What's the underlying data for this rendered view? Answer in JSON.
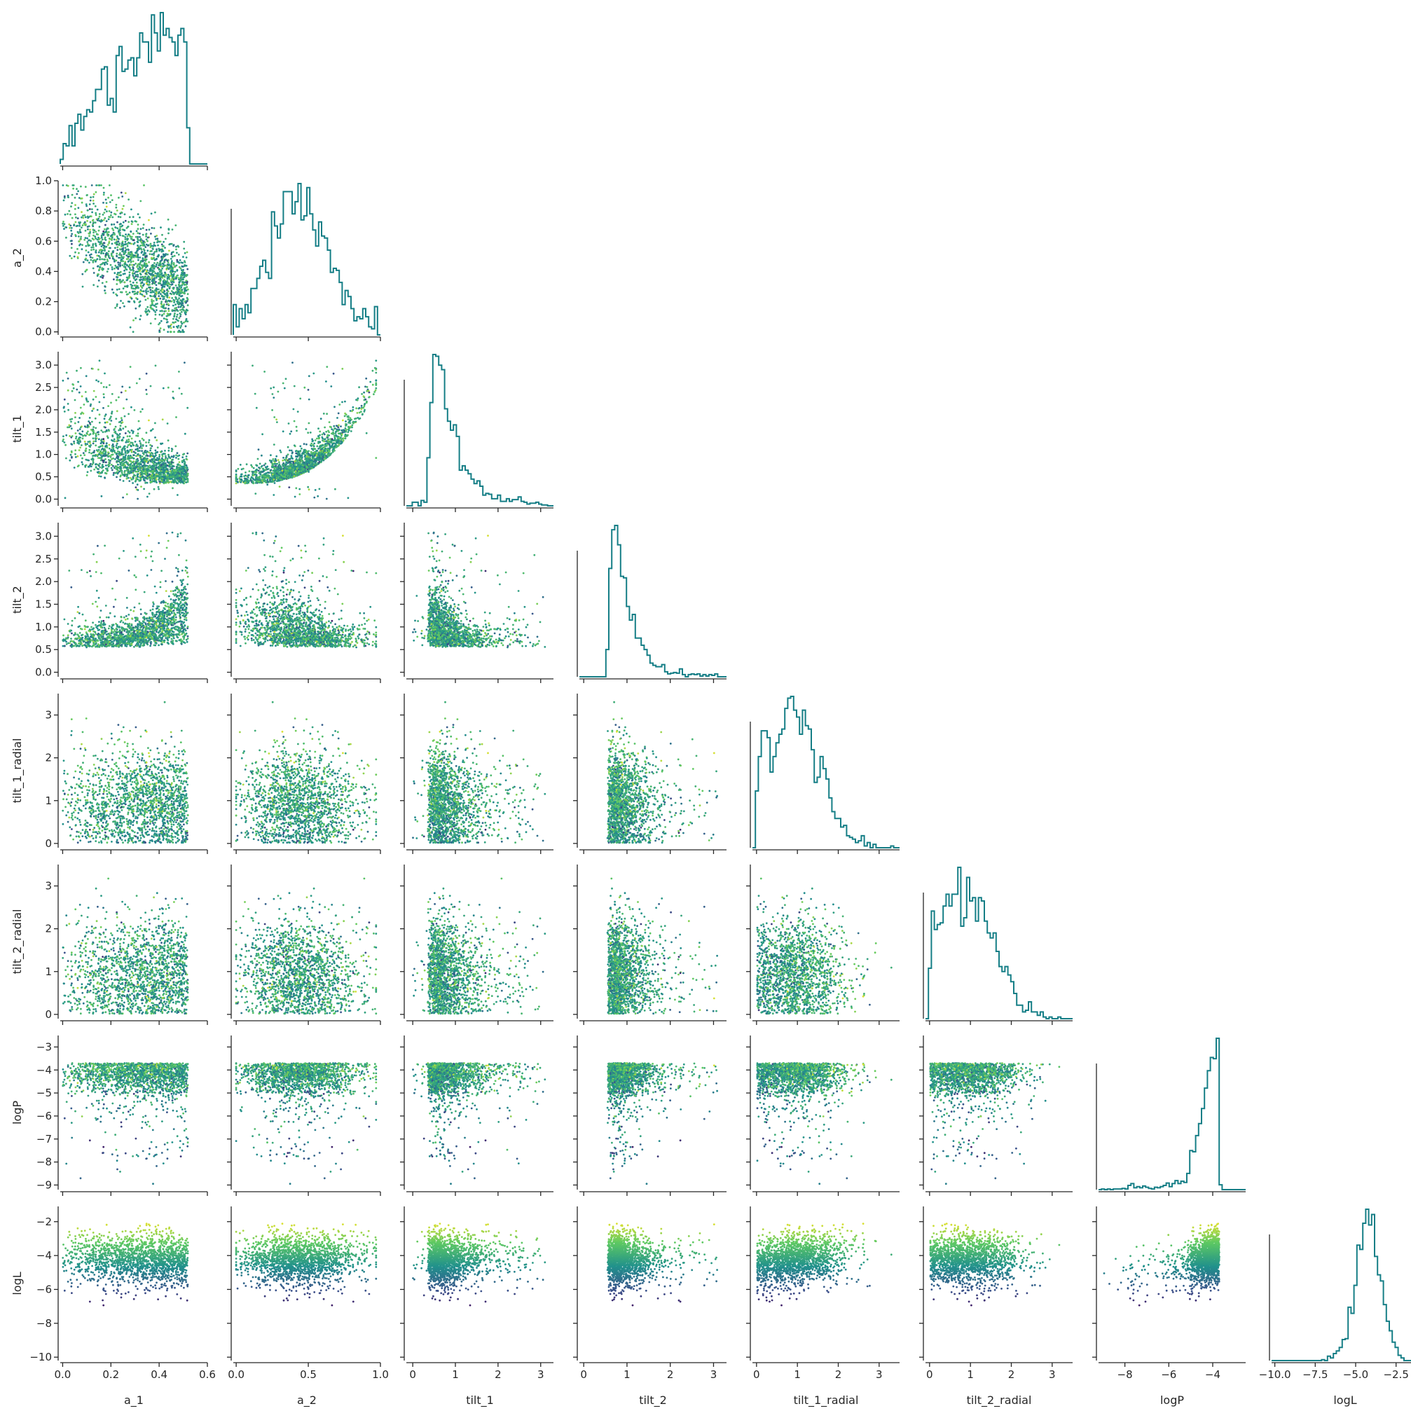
{
  "chart_data": {
    "type": "scatter",
    "layout": "corner pair plot (lower triangle scatter, diagonal histograms)",
    "variables": [
      {
        "name": "a_1",
        "label": "a_1",
        "range": [
          -0.01,
          0.6
        ],
        "ticks": [
          0.0,
          0.2,
          0.4,
          0.6
        ],
        "tick_labels": [
          "0.0",
          "0.2",
          "0.4",
          "0.6"
        ]
      },
      {
        "name": "a_2",
        "label": "a_2",
        "range": [
          -0.02,
          1.0
        ],
        "ticks": [
          0.0,
          0.2,
          0.4,
          0.6,
          0.8,
          1.0
        ],
        "tick_labels": [
          "0.0",
          "0.2",
          "0.4",
          "0.6",
          "0.8",
          "1.0"
        ],
        "x_ticks": [
          0.0,
          0.5,
          1.0
        ],
        "x_tick_labels": [
          "0.0",
          "0.5",
          "1.0"
        ]
      },
      {
        "name": "tilt_1",
        "label": "tilt_1",
        "range": [
          -0.15,
          3.3
        ],
        "ticks": [
          0.0,
          0.5,
          1.0,
          1.5,
          2.0,
          2.5,
          3.0
        ],
        "tick_labels": [
          "0.0",
          "0.5",
          "1.0",
          "1.5",
          "2.0",
          "2.5",
          "3.0"
        ],
        "x_ticks": [
          0,
          1,
          2,
          3
        ],
        "x_tick_labels": [
          "0",
          "1",
          "2",
          "3"
        ]
      },
      {
        "name": "tilt_2",
        "label": "tilt_2",
        "range": [
          -0.1,
          3.3
        ],
        "ticks": [
          0.0,
          0.5,
          1.0,
          1.5,
          2.0,
          2.5,
          3.0
        ],
        "tick_labels": [
          "0.0",
          "0.5",
          "1.0",
          "1.5",
          "2.0",
          "2.5",
          "3.0"
        ],
        "x_ticks": [
          0,
          1,
          2,
          3
        ],
        "x_tick_labels": [
          "0",
          "1",
          "2",
          "3"
        ]
      },
      {
        "name": "tilt_1_radial",
        "label": "tilt_1_radial",
        "range": [
          -0.1,
          3.5
        ],
        "ticks": [
          0,
          1,
          2,
          3
        ],
        "tick_labels": [
          "0",
          "1",
          "2",
          "3"
        ]
      },
      {
        "name": "tilt_2_radial",
        "label": "tilt_2_radial",
        "range": [
          -0.1,
          3.5
        ],
        "ticks": [
          0,
          1,
          2,
          3
        ],
        "tick_labels": [
          "0",
          "1",
          "2",
          "3"
        ]
      },
      {
        "name": "logP",
        "label": "logP",
        "range": [
          -9.2,
          -2.5
        ],
        "ticks": [
          -9,
          -8,
          -7,
          -6,
          -5,
          -4,
          -3
        ],
        "tick_labels": [
          "−9",
          "−8",
          "−7",
          "−6",
          "−5",
          "−4",
          "−3"
        ],
        "x_ticks": [
          -8,
          -6,
          -4
        ],
        "x_tick_labels": [
          "−8",
          "−6",
          "−4"
        ]
      },
      {
        "name": "logL",
        "label": "logL",
        "range": [
          -10.2,
          -1.1
        ],
        "ticks": [
          -10,
          -8,
          -6,
          -4,
          -2
        ],
        "tick_labels": [
          "−10",
          "−8",
          "−6",
          "−4",
          "−2"
        ],
        "x_ticks": [
          -10.0,
          -7.5,
          -5.0,
          -2.5
        ],
        "x_tick_labels": [
          "−10.0",
          "−7.5",
          "−5.0",
          "−2.5"
        ]
      }
    ],
    "diagonal": "step histogram",
    "point_color_by": "logL",
    "colormap": [
      "#440154",
      "#3b528b",
      "#21918c",
      "#5ec962",
      "#fde725"
    ],
    "histogram_color": "#157e86",
    "n_points_per_panel_approx": 1700,
    "corner": true,
    "grid": false,
    "legend": "none"
  }
}
